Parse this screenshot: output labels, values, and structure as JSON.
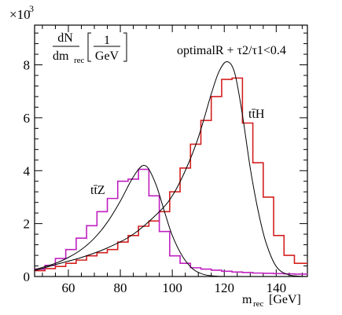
{
  "chart_data": {
    "type": "line",
    "title": "",
    "annotation": "optimalR + τ2/τ1<0.4",
    "ylabel_prefix": "dN",
    "ylabel_den": "dm",
    "ylabel_den_sub": "rec",
    "ylabel_unit_num": "1",
    "ylabel_unit_den": "GeV",
    "xlabel_main": "m",
    "xlabel_sub": "rec",
    "xlabel_unit": "[GeV]",
    "y_multiplier": "×10",
    "y_multiplier_exp": "3",
    "xlim": [
      47,
      152
    ],
    "ylim": [
      0,
      9.5
    ],
    "x_ticks": [
      60,
      80,
      100,
      120,
      140
    ],
    "y_ticks": [
      0,
      2,
      4,
      6,
      8
    ],
    "grid": false,
    "legend": "none",
    "bin_edges": [
      47,
      51,
      55,
      59,
      63,
      67,
      71,
      75,
      79,
      83,
      87,
      91,
      95,
      99,
      103,
      107,
      111,
      115,
      119,
      123,
      127,
      131,
      135,
      139,
      143,
      147,
      152
    ],
    "series": [
      {
        "name": "tt̄H",
        "label_text": "tt̄H",
        "color": "#d42020",
        "kind": "histogram",
        "values": [
          0.22,
          0.3,
          0.38,
          0.5,
          0.62,
          0.78,
          0.9,
          1.02,
          1.3,
          1.55,
          1.9,
          2.1,
          2.45,
          3.2,
          4.1,
          5.0,
          5.9,
          6.8,
          7.45,
          7.5,
          5.8,
          4.3,
          3.0,
          1.55,
          0.8,
          0.5
        ]
      },
      {
        "name": "tt̄Z",
        "label_text": "tt̄Z",
        "color": "#c020c0",
        "kind": "histogram",
        "values": [
          0.28,
          0.42,
          0.68,
          1.02,
          1.45,
          1.92,
          2.45,
          2.95,
          3.6,
          3.68,
          4.05,
          3.05,
          1.7,
          0.78,
          0.5,
          0.33,
          0.28,
          0.24,
          0.2,
          0.17,
          0.15,
          0.13,
          0.12,
          0.11,
          0.1,
          0.09
        ]
      },
      {
        "name": "tt̄H fit",
        "color": "#000000",
        "kind": "fit",
        "x": [
          47,
          55,
          65,
          75,
          85,
          95,
          100,
          105,
          110,
          115,
          118,
          121,
          124,
          127,
          130,
          133,
          136,
          140,
          145,
          152
        ],
        "values": [
          0.22,
          0.45,
          0.72,
          1.08,
          1.6,
          2.45,
          3.05,
          4.0,
          5.25,
          6.9,
          7.75,
          8.12,
          7.7,
          6.1,
          4.1,
          2.5,
          1.3,
          0.38,
          0.06,
          0.0
        ]
      },
      {
        "name": "tt̄Z fit",
        "color": "#000000",
        "kind": "fit",
        "x": [
          47,
          55,
          60,
          65,
          70,
          75,
          80,
          84,
          87,
          89,
          91,
          94,
          97,
          100,
          104,
          108,
          112,
          116,
          120
        ],
        "values": [
          0.26,
          0.5,
          0.72,
          1.02,
          1.45,
          2.05,
          2.85,
          3.6,
          4.05,
          4.2,
          4.05,
          3.4,
          2.45,
          1.55,
          0.75,
          0.28,
          0.08,
          0.02,
          0.0
        ]
      }
    ]
  }
}
